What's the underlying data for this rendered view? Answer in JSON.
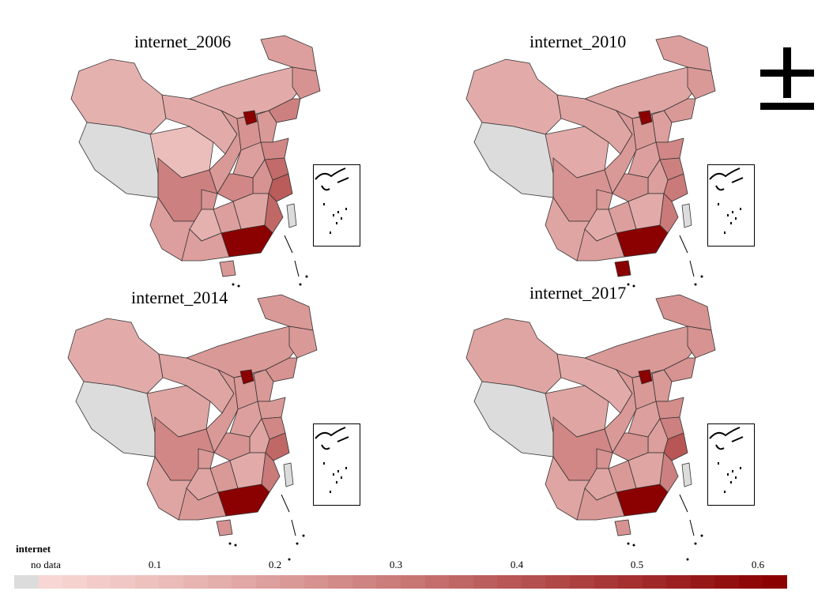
{
  "panels": [
    {
      "title": "internet_2006"
    },
    {
      "title": "internet_2010"
    },
    {
      "title": "internet_2014"
    },
    {
      "title": "internet_2017"
    }
  ],
  "legend": {
    "title": "internet",
    "no_data_label": "no data",
    "no_data_color": "#dcdcdc",
    "ticks": [
      "0.1",
      "0.2",
      "0.3",
      "0.4",
      "0.5",
      "0.6"
    ],
    "scale_low_color": "#f8d6d3",
    "scale_high_color": "#8b0000"
  },
  "north_arrow": {
    "icon": "north-arrow-icon"
  },
  "colors": {
    "border": "#333333",
    "background": "#ffffff"
  }
}
